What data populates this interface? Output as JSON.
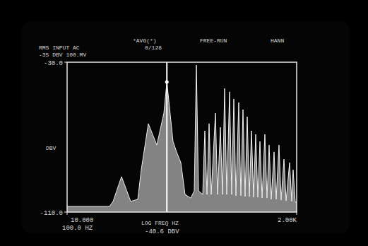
{
  "chart_data": {
    "type": "area",
    "log": "x",
    "grid": false,
    "color": "#9a9a9a",
    "annotations": [
      "RMS INPUT AC",
      "-35 DBV 100.MV",
      "*AVG(*)",
      "0/128",
      "FREE-RUN",
      "HANN"
    ],
    "x_label": "LOG FREQ HZ",
    "y_label": "DBV",
    "xlim": [
      10,
      2000
    ],
    "ylim": [
      -110,
      -30
    ],
    "xticks": [
      {
        "value": 10,
        "label": "10.000"
      },
      {
        "value": 2000,
        "label": "2.00K"
      }
    ],
    "yticks": [
      {
        "value": -110,
        "label": "-110.0"
      },
      {
        "value": -30,
        "label": "-30.0"
      }
    ],
    "marker": {
      "x": 100,
      "x_label": "100.0 HZ",
      "y": -40.6,
      "y_label": "-40.6 DBV"
    },
    "x": [
      10,
      26.6,
      28.9,
      35.1,
      43.4,
      51.1,
      55.4,
      65.2,
      79.3,
      93.3,
      100,
      115.3,
      125.2,
      138.0,
      152.2,
      173.4,
      188.1,
      197.6,
      207.5,
      228.8,
      240.2,
      252.3,
      265.0,
      278.3,
      306.8,
      322.2,
      343.9,
      361.1,
      379.3,
      398.2,
      425.1,
      446.4,
      468.8,
      492.3,
      525.3,
      551.6,
      579.4,
      608.3,
      639.0,
      671.0,
      704.6,
      739.8,
      777.0,
      815.8,
      857.1,
      900.0,
      960.3,
      1008.5,
      1059,
      1112,
      1187,
      1246,
      1330,
      1397,
      1492,
      1566,
      1699,
      1784,
      1843,
      1936,
      2000
    ],
    "values": [
      -107.0,
      -107.0,
      -104.3,
      -91.1,
      -104.3,
      -103.2,
      -87.4,
      -62.8,
      -74.2,
      -57.2,
      -40.6,
      -72.3,
      -77.9,
      -83.6,
      -100.6,
      -102.5,
      -98.7,
      -31.5,
      -98.7,
      -100.6,
      -66.6,
      -100.6,
      -62.8,
      -100.6,
      -57.2,
      -100.6,
      -64.7,
      -100.6,
      -44.0,
      -100.6,
      -45.8,
      -100.6,
      -49.6,
      -101.3,
      -51.5,
      -101.3,
      -55.3,
      -101.7,
      -59.1,
      -101.7,
      -66.6,
      -102.1,
      -68.5,
      -102.1,
      -72.3,
      -102.5,
      -68.5,
      -102.5,
      -74.2,
      -103.2,
      -77.9,
      -103.2,
      -74.2,
      -103.6,
      -81.7,
      -104.0,
      -83.6,
      -104.3,
      -87.4,
      -104.7,
      -104.7
    ]
  }
}
